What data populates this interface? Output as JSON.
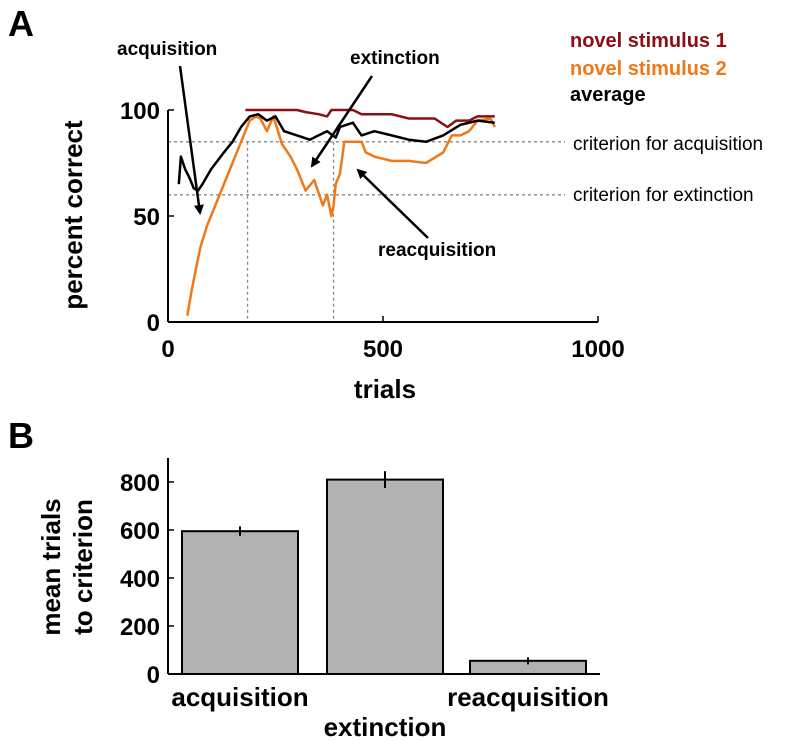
{
  "panels": {
    "a": "A",
    "b": "B"
  },
  "chart_data": [
    {
      "type": "line",
      "xlabel": "trials",
      "ylabel": "percent correct",
      "xlim": [
        0,
        1000
      ],
      "ylim": [
        0,
        100
      ],
      "xticks": [
        0,
        500,
        1000
      ],
      "yticks": [
        0,
        50,
        100
      ],
      "legend_position": "top-right",
      "series": [
        {
          "name": "novel stimulus 1",
          "color": "#8b0f14",
          "x": [
            180,
            230,
            250,
            300,
            320,
            350,
            370,
            380,
            430,
            450,
            520,
            560,
            620,
            650,
            670,
            700,
            720,
            760
          ],
          "y": [
            100,
            100,
            100,
            100,
            99,
            98,
            97,
            100,
            100,
            98,
            98,
            96,
            96,
            92,
            95,
            95,
            97,
            97
          ]
        },
        {
          "name": "novel stimulus 2",
          "color": "#f07818",
          "x": [
            45,
            55,
            65,
            75,
            90,
            110,
            140,
            170,
            190,
            205,
            215,
            230,
            245,
            265,
            285,
            300,
            320,
            340,
            360,
            370,
            380,
            385,
            390,
            400,
            410,
            430,
            450,
            460,
            480,
            520,
            560,
            600,
            640,
            660,
            680,
            700,
            720,
            750,
            760
          ],
          "y": [
            3,
            15,
            25,
            35,
            45,
            55,
            70,
            85,
            95,
            97,
            96,
            90,
            97,
            84,
            78,
            72,
            62,
            67,
            55,
            60,
            50,
            55,
            65,
            70,
            85,
            85,
            85,
            80,
            78,
            76,
            76,
            75,
            80,
            88,
            88,
            90,
            95,
            96,
            92
          ]
        },
        {
          "name": "average",
          "color": "#000000",
          "x": [
            25,
            30,
            40,
            50,
            60,
            70,
            80,
            100,
            130,
            150,
            170,
            190,
            210,
            230,
            250,
            270,
            300,
            330,
            350,
            370,
            390,
            400,
            430,
            450,
            480,
            520,
            560,
            600,
            640,
            680,
            720,
            760
          ],
          "y": [
            65,
            78,
            72,
            68,
            63,
            62,
            65,
            72,
            80,
            85,
            92,
            97,
            98,
            95,
            97,
            90,
            88,
            86,
            88,
            90,
            87,
            92,
            94,
            88,
            90,
            88,
            86,
            85,
            88,
            93,
            95,
            94
          ]
        }
      ],
      "reference_lines": [
        {
          "label": "criterion for acquisition",
          "y": 85
        },
        {
          "label": "criterion for extinction",
          "y": 60
        }
      ],
      "vertical_lines": [
        185,
        385
      ],
      "annotations": [
        "acquisition",
        "extinction",
        "reacquisition"
      ]
    },
    {
      "type": "bar",
      "ylabel": "mean trials to criterion",
      "ylabel_lines": [
        "mean trials",
        "to criterion"
      ],
      "ylim": [
        0,
        900
      ],
      "yticks": [
        0,
        200,
        400,
        600,
        800
      ],
      "categories": [
        "acquisition",
        "extinction",
        "reacquisition"
      ],
      "values": [
        595,
        810,
        55
      ],
      "errors": [
        20,
        35,
        15
      ],
      "bar_color": "#b2b2b2"
    }
  ]
}
